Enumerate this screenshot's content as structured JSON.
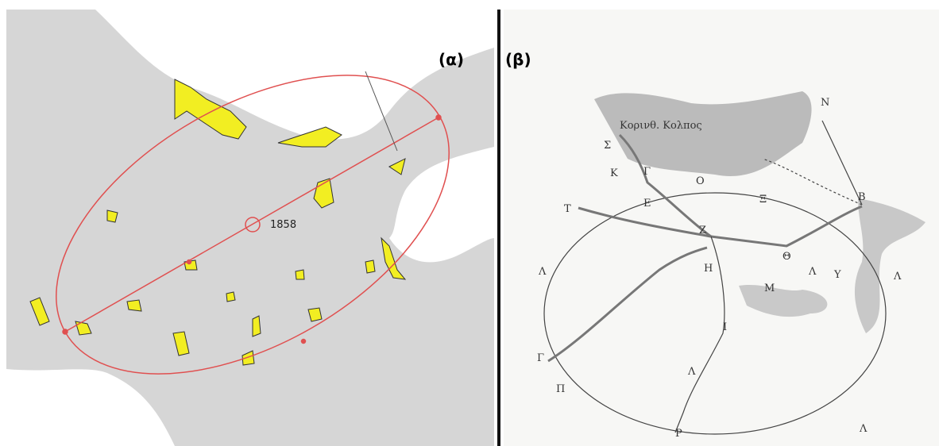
{
  "labels": {
    "panel_a": "(α)",
    "panel_b": "(β)"
  },
  "map_a": {
    "year": "1858"
  },
  "map_b": {
    "gulf": "Κορινθ. Κολπος",
    "points": [
      "Ν",
      "Σ",
      "Κ",
      "Γ",
      "Ε",
      "Ο",
      "Ξ",
      "Β",
      "Τ",
      "Ζ",
      "Θ",
      "Η",
      "Λ",
      "Υ",
      "Λ",
      "Λ",
      "Μ",
      "Ι",
      "Γ",
      "Λ",
      "Π",
      "Ρ",
      "Λ"
    ]
  }
}
